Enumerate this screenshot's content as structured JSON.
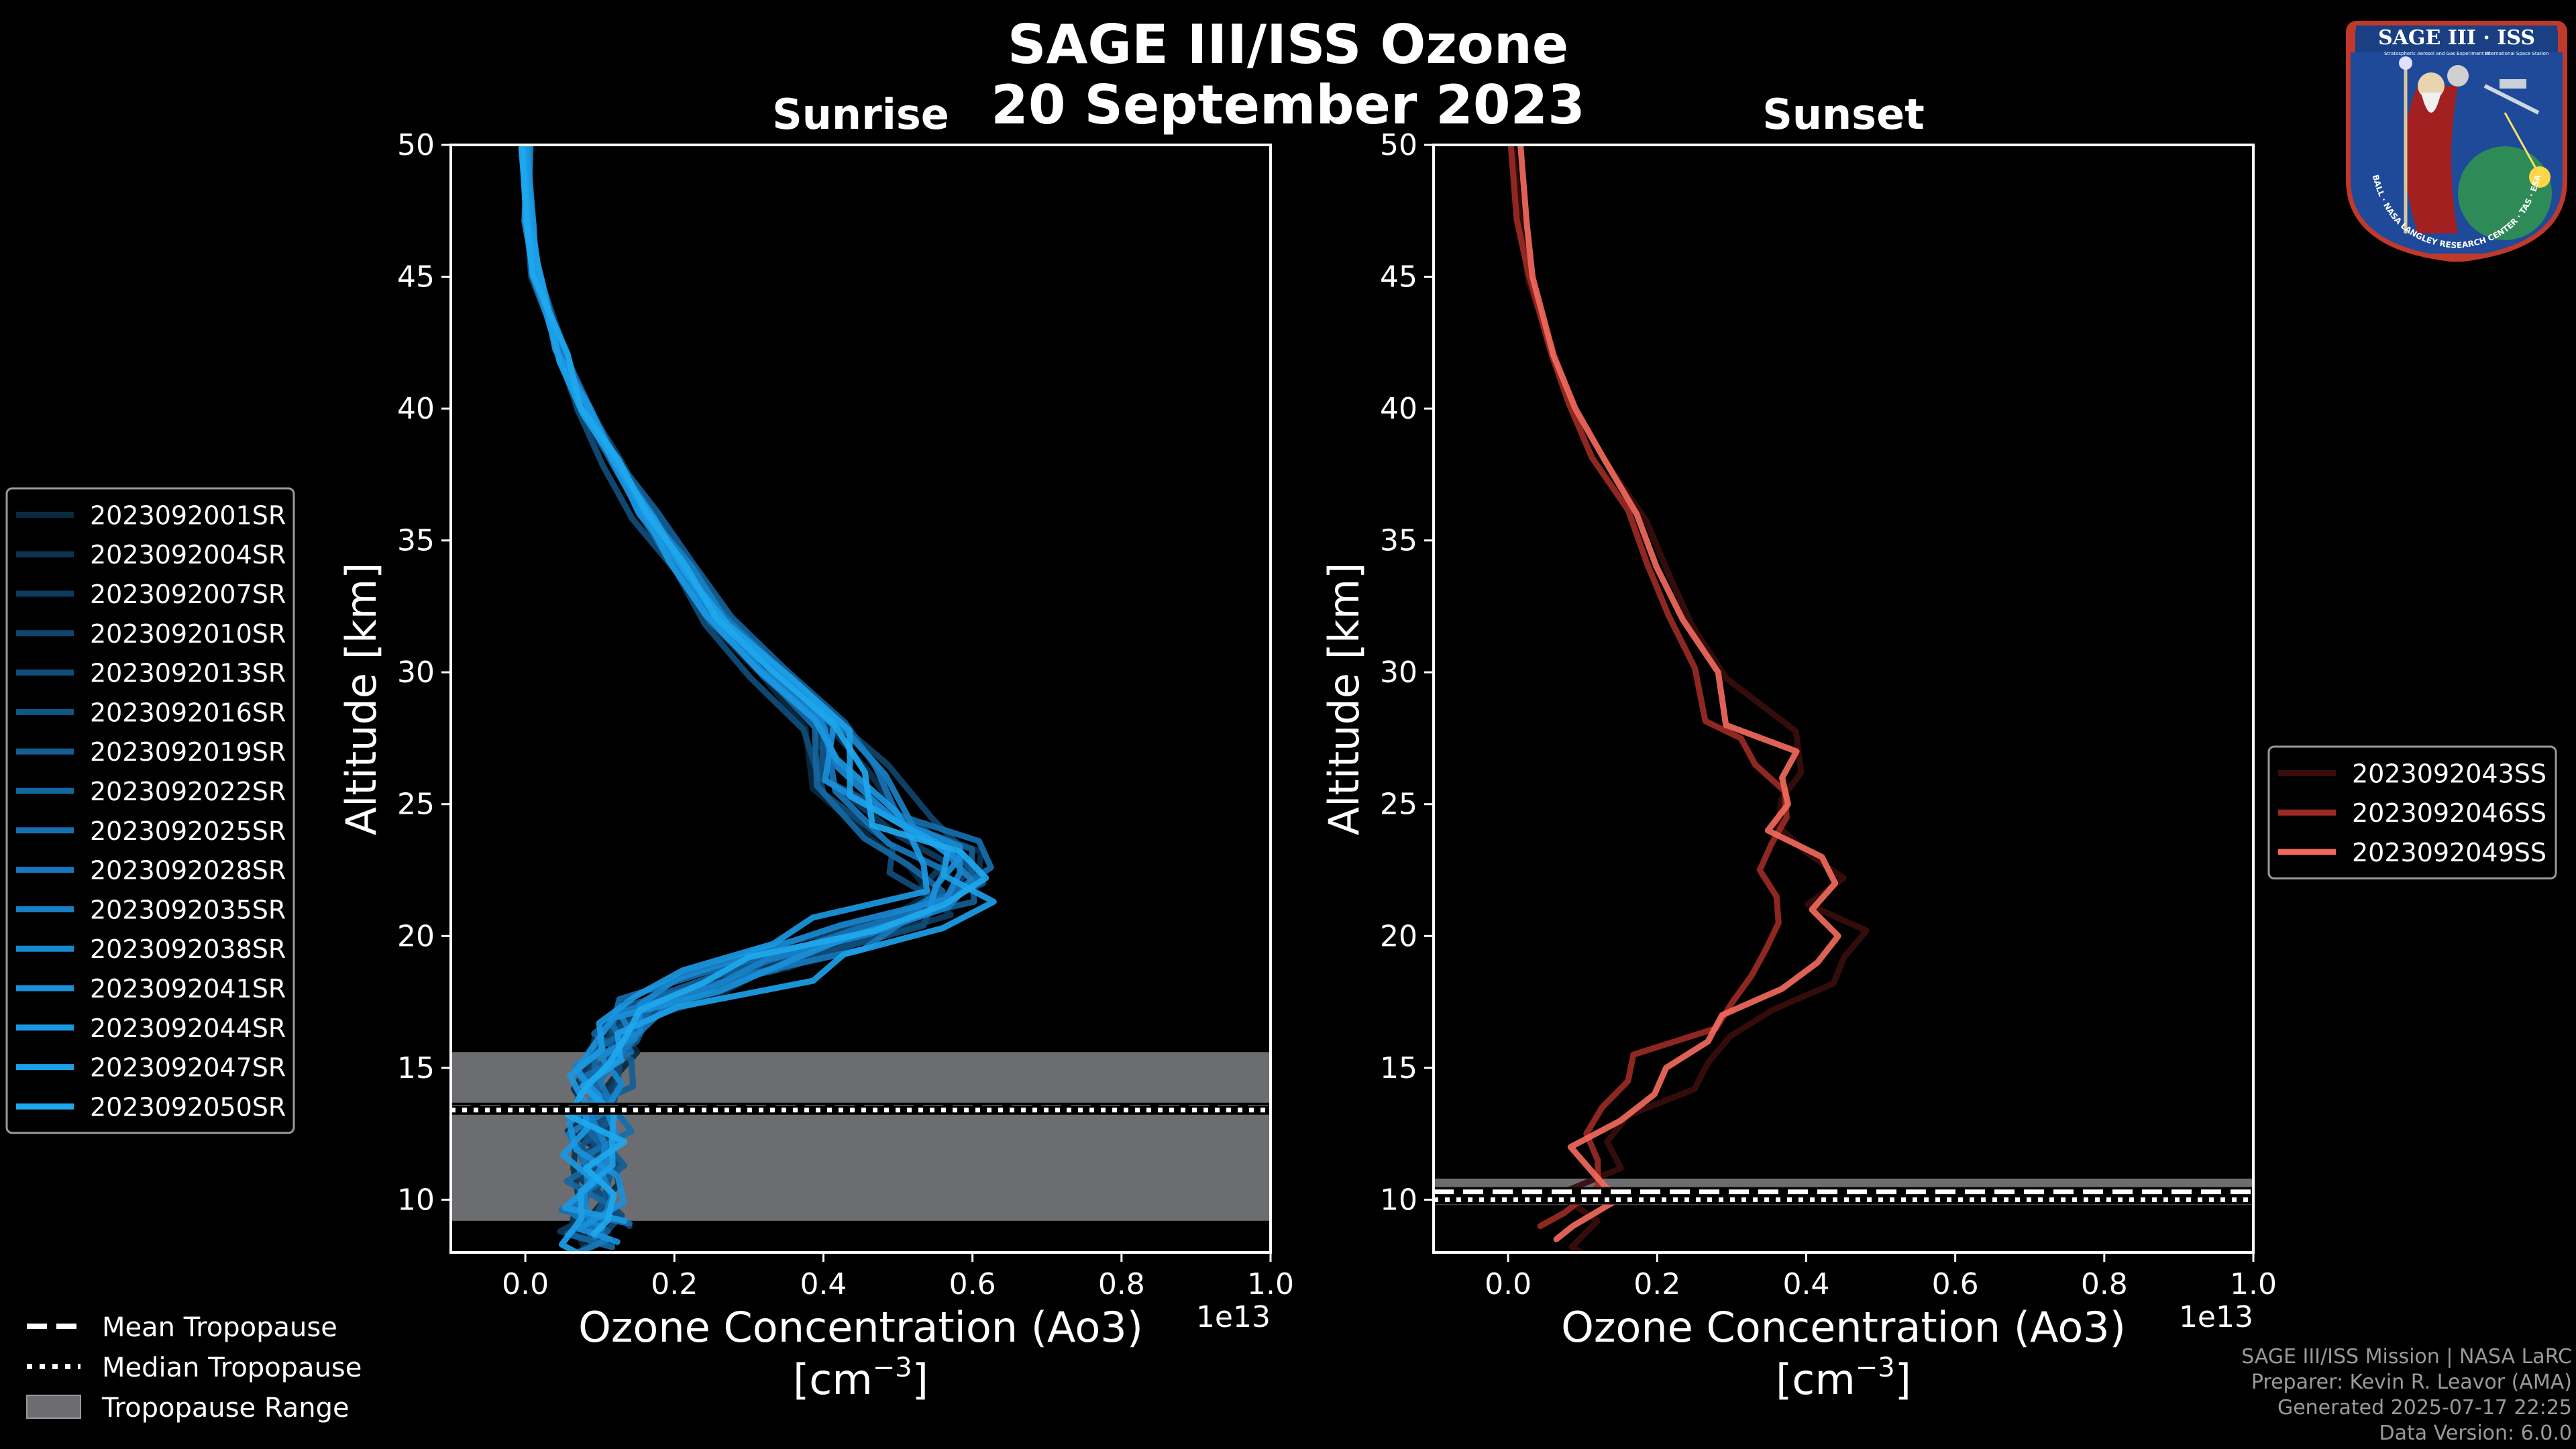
{
  "main_title": "SAGE III/ISS Ozone",
  "main_subtitle": "20 September 2023",
  "badge": {
    "top_text": "SAGE III · ISS",
    "small_left": "Stratospheric Aerosol and Gas Experiment III",
    "small_right": "International Space Station",
    "ring_text": "BALL · NASA LANGLEY RESEARCH CENTER · TAS · ESA"
  },
  "colors": {
    "background": "#000000",
    "sunrise_series": [
      "#0a2a40",
      "#0c3350",
      "#0d3c5e",
      "#0f456c",
      "#104d7a",
      "#125688",
      "#135e95",
      "#1567a2",
      "#166fae",
      "#1777ba",
      "#1880c6",
      "#1988d0",
      "#1a90da",
      "#1b98e2",
      "#1ca0e8",
      "#1ea8ee"
    ],
    "sunset_series": [
      "#3a0d0d",
      "#9a2a24",
      "#f06a5c"
    ],
    "tropopause_range": "#6b6d70"
  },
  "footer": {
    "line1": "SAGE III/ISS Mission | NASA LaRC",
    "line2": "Preparer: Kevin R. Leavor (AMA)",
    "line3": "Generated 2025-07-17 22:25",
    "line4": "Data Version: 6.0.0"
  },
  "tropo_legend": {
    "mean": "Mean Tropopause",
    "median": "Median Tropopause",
    "range": "Tropopause Range"
  },
  "chart_data": [
    {
      "id": "sunrise",
      "type": "line",
      "title": "Sunrise",
      "xlabel": "Ozone Concentration (Ao3)",
      "xunit": "[cm",
      "xunit_exp": "−3",
      "xunit_close": "]",
      "ylabel": "Altitude [km]",
      "xlim": [
        -0.1,
        1.0
      ],
      "ylim": [
        8,
        50
      ],
      "x_scale_label": "1e13",
      "xticks": [
        0.0,
        0.2,
        0.4,
        0.6,
        0.8,
        1.0
      ],
      "xtick_labels": [
        "0.0",
        "0.2",
        "0.4",
        "0.6",
        "0.8",
        "1.0"
      ],
      "yticks": [
        10,
        15,
        20,
        25,
        30,
        35,
        40,
        45,
        50
      ],
      "ytick_labels": [
        "10",
        "15",
        "20",
        "25",
        "30",
        "35",
        "40",
        "45",
        "50"
      ],
      "tropopause": {
        "mean": 13.5,
        "median": 13.4,
        "range": [
          9.2,
          15.6
        ]
      },
      "legend_position": "outside-left",
      "base_profile": [
        [
          50,
          0.001
        ],
        [
          47,
          0.005
        ],
        [
          45,
          0.015
        ],
        [
          42,
          0.05
        ],
        [
          40,
          0.08
        ],
        [
          38,
          0.12
        ],
        [
          36,
          0.16
        ],
        [
          34,
          0.21
        ],
        [
          32,
          0.26
        ],
        [
          30,
          0.33
        ],
        [
          28,
          0.38
        ],
        [
          26,
          0.43
        ],
        [
          24,
          0.5
        ],
        [
          23,
          0.56
        ],
        [
          22,
          0.58
        ],
        [
          21,
          0.55
        ],
        [
          20,
          0.44
        ],
        [
          19,
          0.33
        ],
        [
          18,
          0.22
        ],
        [
          17,
          0.15
        ],
        [
          16,
          0.12
        ],
        [
          15,
          0.1
        ],
        [
          14,
          0.1
        ],
        [
          13,
          0.09
        ],
        [
          12,
          0.1
        ],
        [
          11,
          0.09
        ],
        [
          10,
          0.1
        ],
        [
          9,
          0.08
        ],
        [
          8.5,
          0.1
        ]
      ],
      "series": [
        {
          "name": "2023092001SR",
          "scale": 0.95,
          "shift": -0.4,
          "seed": 1
        },
        {
          "name": "2023092004SR",
          "scale": 1.02,
          "shift": 0.2,
          "seed": 2
        },
        {
          "name": "2023092007SR",
          "scale": 0.98,
          "shift": -0.2,
          "seed": 3
        },
        {
          "name": "2023092010SR",
          "scale": 1.05,
          "shift": 0.5,
          "seed": 4
        },
        {
          "name": "2023092013SR",
          "scale": 0.93,
          "shift": -0.6,
          "seed": 5
        },
        {
          "name": "2023092016SR",
          "scale": 1.0,
          "shift": 0.0,
          "seed": 6
        },
        {
          "name": "2023092019SR",
          "scale": 1.07,
          "shift": 0.3,
          "seed": 7
        },
        {
          "name": "2023092022SR",
          "scale": 0.96,
          "shift": -0.3,
          "seed": 8
        },
        {
          "name": "2023092025SR",
          "scale": 1.03,
          "shift": 0.6,
          "seed": 9
        },
        {
          "name": "2023092028SR",
          "scale": 0.99,
          "shift": -0.5,
          "seed": 10
        },
        {
          "name": "2023092035SR",
          "scale": 1.04,
          "shift": 0.1,
          "seed": 11
        },
        {
          "name": "2023092038SR",
          "scale": 0.97,
          "shift": 0.4,
          "seed": 12
        },
        {
          "name": "2023092041SR",
          "scale": 1.01,
          "shift": -0.1,
          "seed": 13
        },
        {
          "name": "2023092044SR",
          "scale": 0.94,
          "shift": 0.7,
          "seed": 14
        },
        {
          "name": "2023092047SR",
          "scale": 1.06,
          "shift": -0.7,
          "seed": 15
        },
        {
          "name": "2023092050SR",
          "scale": 1.0,
          "shift": 0.2,
          "seed": 16
        }
      ]
    },
    {
      "id": "sunset",
      "type": "line",
      "title": "Sunset",
      "xlabel": "Ozone Concentration (Ao3)",
      "xunit": "[cm",
      "xunit_exp": "−3",
      "xunit_close": "]",
      "ylabel": "Altitude [km]",
      "xlim": [
        -0.1,
        1.0
      ],
      "ylim": [
        8,
        50
      ],
      "x_scale_label": "1e13",
      "xticks": [
        0.0,
        0.2,
        0.4,
        0.6,
        0.8,
        1.0
      ],
      "xtick_labels": [
        "0.0",
        "0.2",
        "0.4",
        "0.6",
        "0.8",
        "1.0"
      ],
      "yticks": [
        10,
        15,
        20,
        25,
        30,
        35,
        40,
        45,
        50
      ],
      "ytick_labels": [
        "10",
        "15",
        "20",
        "25",
        "30",
        "35",
        "40",
        "45",
        "50"
      ],
      "tropopause": {
        "mean": 10.3,
        "median": 10.0,
        "range": [
          9.8,
          10.8
        ]
      },
      "legend_position": "outside-right",
      "base_profile": [
        [
          50,
          0.01
        ],
        [
          47,
          0.02
        ],
        [
          45,
          0.03
        ],
        [
          42,
          0.06
        ],
        [
          40,
          0.09
        ],
        [
          38,
          0.13
        ],
        [
          36,
          0.17
        ],
        [
          34,
          0.2
        ],
        [
          32,
          0.24
        ],
        [
          30,
          0.28
        ],
        [
          28,
          0.33
        ],
        [
          27,
          0.36
        ],
        [
          26,
          0.34
        ],
        [
          25,
          0.36
        ],
        [
          24,
          0.38
        ],
        [
          23,
          0.4
        ],
        [
          22,
          0.41
        ],
        [
          21,
          0.42
        ],
        [
          20,
          0.42
        ],
        [
          19,
          0.38
        ],
        [
          18,
          0.33
        ],
        [
          17,
          0.3
        ],
        [
          16,
          0.28
        ],
        [
          15,
          0.22
        ],
        [
          14,
          0.17
        ],
        [
          13,
          0.15
        ],
        [
          12,
          0.12
        ],
        [
          11,
          0.1
        ],
        [
          10,
          0.12
        ],
        [
          9,
          0.1
        ],
        [
          8.5,
          0.08
        ]
      ],
      "series": [
        {
          "name": "2023092043SS",
          "scale": 1.05,
          "shift": -0.8,
          "seed": 21
        },
        {
          "name": "2023092046SS",
          "scale": 0.92,
          "shift": 0.5,
          "seed": 22
        },
        {
          "name": "2023092049SS",
          "scale": 1.0,
          "shift": 0.0,
          "seed": 23
        }
      ]
    }
  ]
}
